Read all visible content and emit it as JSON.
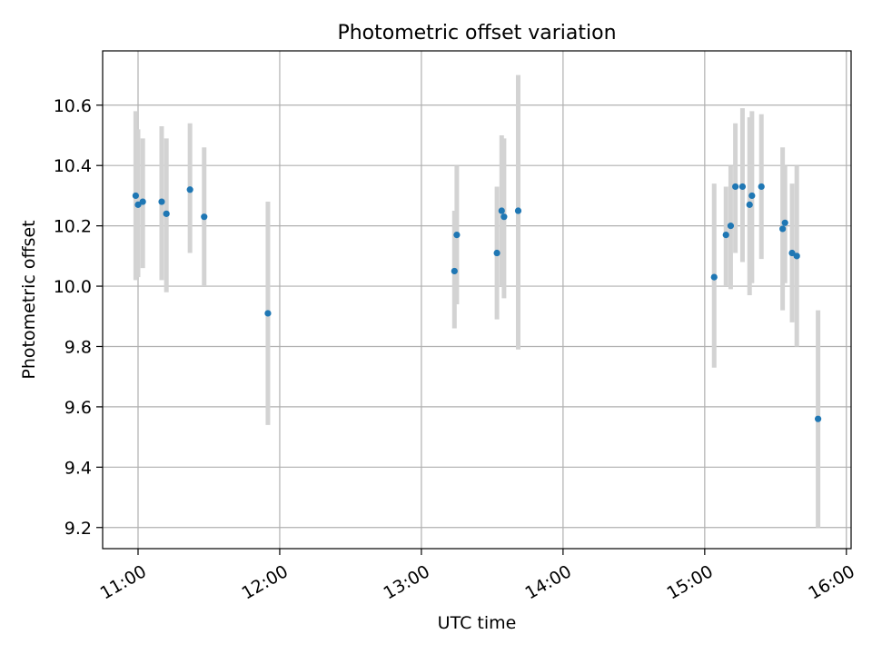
{
  "chart_data": {
    "type": "scatter",
    "title": "Photometric offset variation",
    "xlabel": "UTC time",
    "ylabel": "Photometric offset",
    "x_unit": "UTC hh:mm",
    "xlim": [
      "10:45",
      "16:02"
    ],
    "ylim": [
      9.13,
      10.78
    ],
    "grid": true,
    "xticks": [
      "11:00",
      "12:00",
      "13:00",
      "14:00",
      "15:00",
      "16:00"
    ],
    "yticks": [
      9.2,
      9.4,
      9.6,
      9.8,
      10.0,
      10.2,
      10.4,
      10.6
    ],
    "marker_color": "#1f77b4",
    "errorbar_color": "#d3d3d3",
    "points": [
      {
        "x": "10:59",
        "y": 10.3,
        "lo": 10.02,
        "hi": 10.58
      },
      {
        "x": "11:00",
        "y": 10.27,
        "lo": 10.03,
        "hi": 10.52
      },
      {
        "x": "11:02",
        "y": 10.28,
        "lo": 10.06,
        "hi": 10.49
      },
      {
        "x": "11:10",
        "y": 10.28,
        "lo": 10.02,
        "hi": 10.53
      },
      {
        "x": "11:12",
        "y": 10.24,
        "lo": 9.98,
        "hi": 10.49
      },
      {
        "x": "11:22",
        "y": 10.32,
        "lo": 10.11,
        "hi": 10.54
      },
      {
        "x": "11:28",
        "y": 10.23,
        "lo": 10.0,
        "hi": 10.46
      },
      {
        "x": "11:55",
        "y": 9.91,
        "lo": 9.54,
        "hi": 10.28
      },
      {
        "x": "13:14",
        "y": 10.05,
        "lo": 9.86,
        "hi": 10.25
      },
      {
        "x": "13:15",
        "y": 10.17,
        "lo": 9.94,
        "hi": 10.4
      },
      {
        "x": "13:32",
        "y": 10.11,
        "lo": 9.89,
        "hi": 10.33
      },
      {
        "x": "13:34",
        "y": 10.25,
        "lo": 10.0,
        "hi": 10.5
      },
      {
        "x": "13:35",
        "y": 10.23,
        "lo": 9.96,
        "hi": 10.49
      },
      {
        "x": "13:41",
        "y": 10.25,
        "lo": 9.79,
        "hi": 10.7
      },
      {
        "x": "15:04",
        "y": 10.03,
        "lo": 9.73,
        "hi": 10.34
      },
      {
        "x": "15:09",
        "y": 10.17,
        "lo": 10.0,
        "hi": 10.33
      },
      {
        "x": "15:11",
        "y": 10.2,
        "lo": 9.99,
        "hi": 10.4
      },
      {
        "x": "15:13",
        "y": 10.33,
        "lo": 10.11,
        "hi": 10.54
      },
      {
        "x": "15:16",
        "y": 10.33,
        "lo": 10.08,
        "hi": 10.59
      },
      {
        "x": "15:19",
        "y": 10.27,
        "lo": 9.97,
        "hi": 10.56
      },
      {
        "x": "15:20",
        "y": 10.3,
        "lo": 10.01,
        "hi": 10.58
      },
      {
        "x": "15:24",
        "y": 10.33,
        "lo": 10.09,
        "hi": 10.57
      },
      {
        "x": "15:33",
        "y": 10.19,
        "lo": 9.92,
        "hi": 10.46
      },
      {
        "x": "15:34",
        "y": 10.21,
        "lo": 10.01,
        "hi": 10.4
      },
      {
        "x": "15:37",
        "y": 10.11,
        "lo": 9.88,
        "hi": 10.34
      },
      {
        "x": "15:39",
        "y": 10.1,
        "lo": 9.8,
        "hi": 10.4
      },
      {
        "x": "15:48",
        "y": 9.56,
        "lo": 9.2,
        "hi": 9.92
      }
    ]
  }
}
